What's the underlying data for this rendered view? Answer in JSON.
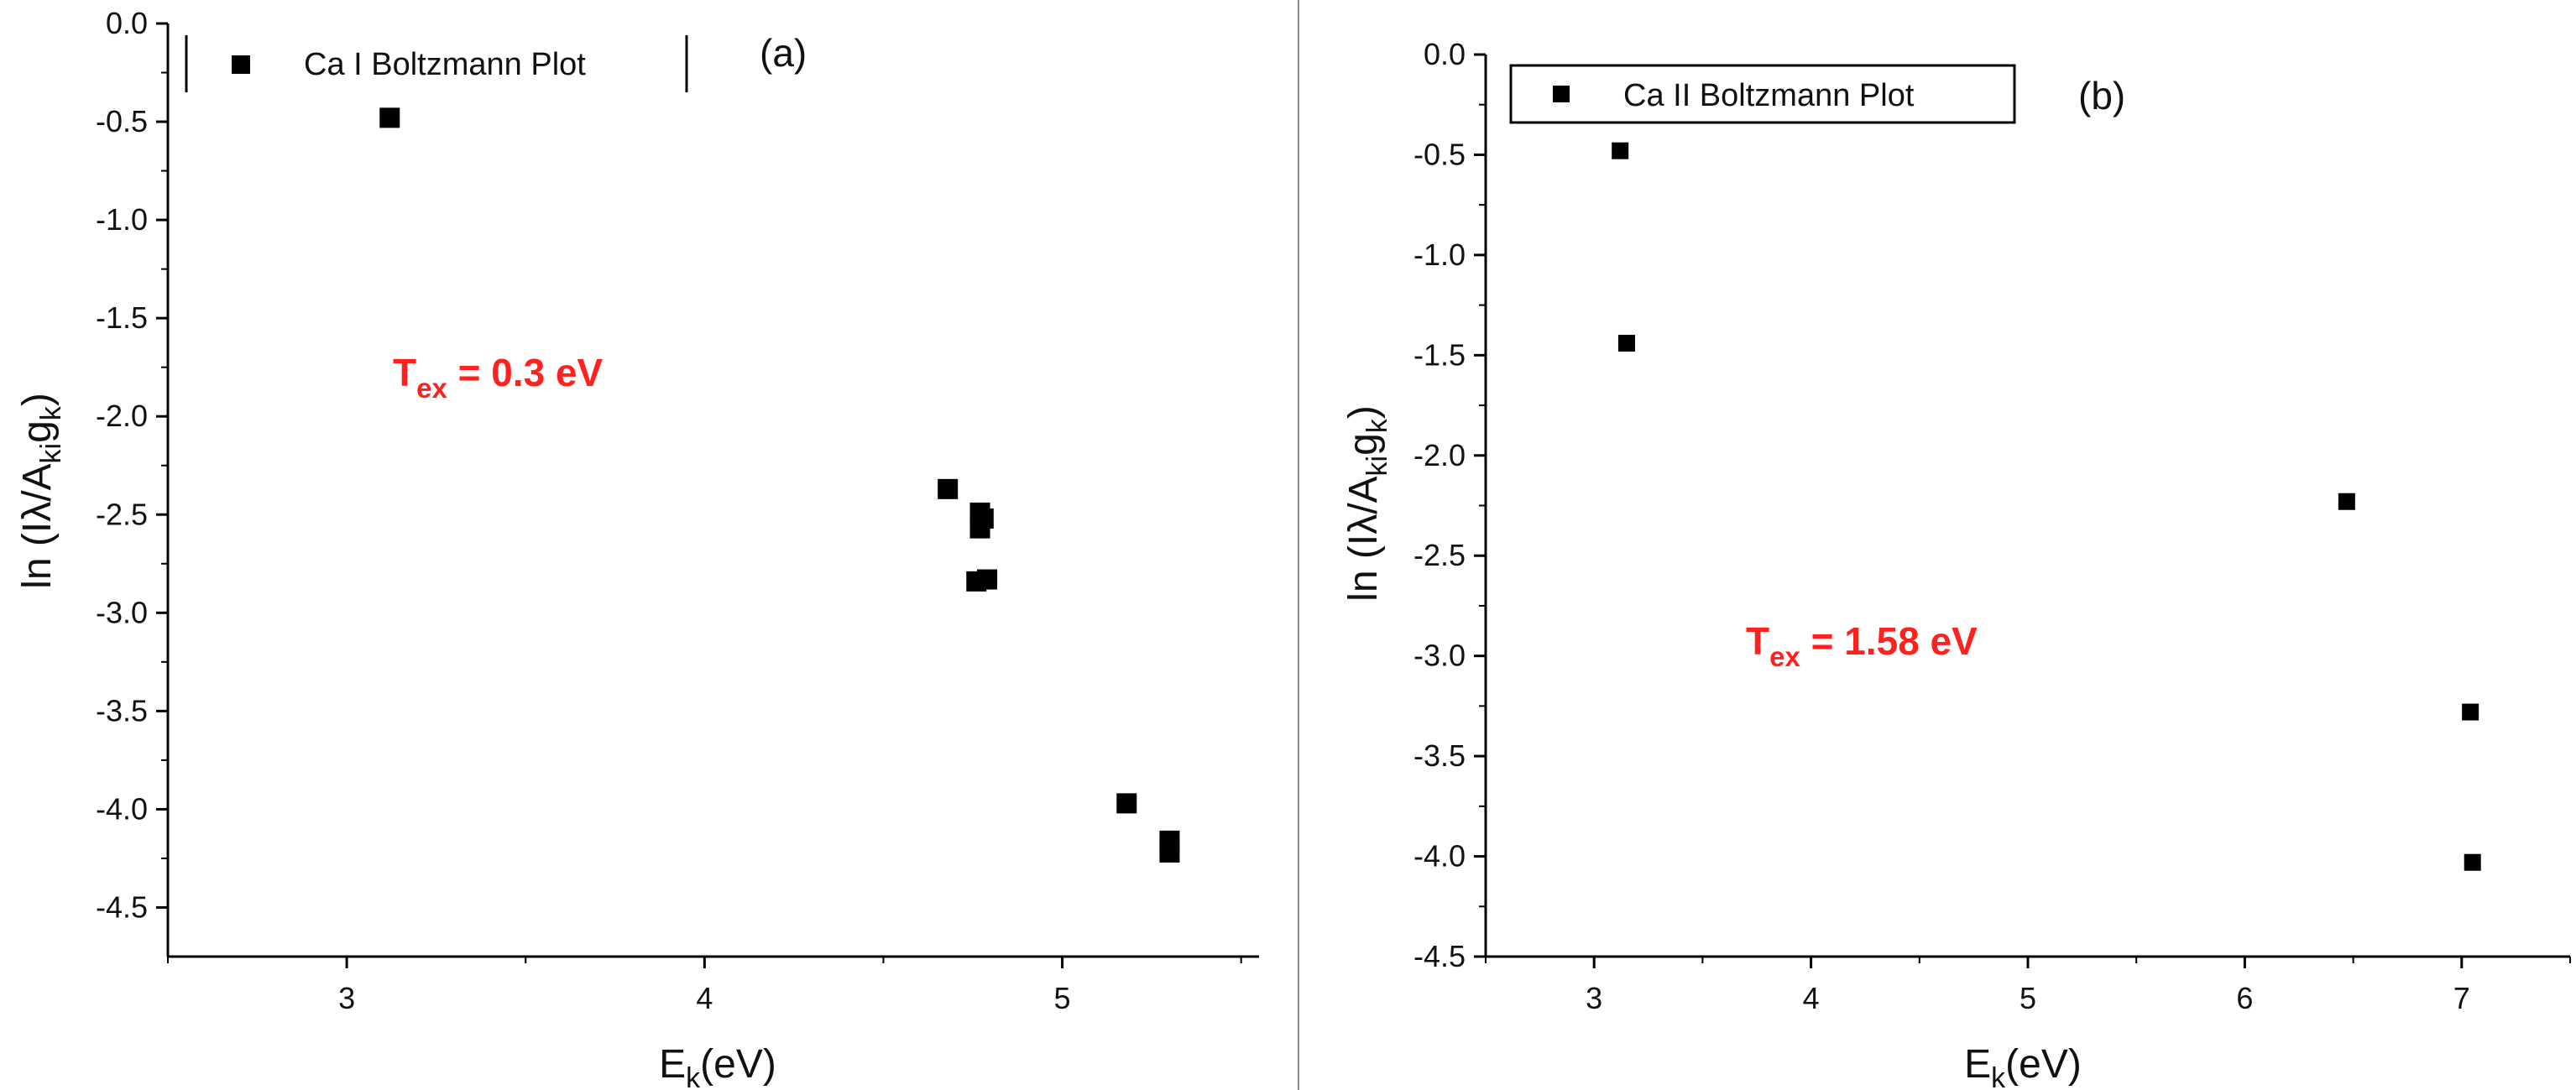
{
  "chart_data": [
    {
      "type": "scatter",
      "panel_label": "(a)",
      "legend": "Ca I Boltzmann Plot",
      "annotation": {
        "main": "T",
        "sub": "ex",
        "rest": " = 0.3 eV",
        "color": "#ff2020"
      },
      "xlabel": {
        "main": "E",
        "sub": "k",
        "rest": "(eV)"
      },
      "ylabel": {
        "prefix": "ln (Iλ/A",
        "sub1": "ki",
        "mid": "g",
        "sub2": "k",
        "suffix": ")"
      },
      "xlim": [
        2.5,
        5.55
      ],
      "ylim": [
        -4.75,
        0.0
      ],
      "xticks": [
        3,
        4,
        5
      ],
      "xtick_labels": [
        "3",
        "4",
        "5"
      ],
      "yticks": [
        0.0,
        -0.5,
        -1.0,
        -1.5,
        -2.0,
        -2.5,
        -3.0,
        -3.5,
        -4.0,
        -4.5
      ],
      "ytick_labels": [
        "0.0",
        "-0.5",
        "-1.0",
        "-1.5",
        "-2.0",
        "-2.5",
        "-3.0",
        "-3.5",
        "-4.0",
        "-4.5"
      ],
      "points": [
        {
          "x": 3.12,
          "y": -0.48
        },
        {
          "x": 4.68,
          "y": -2.37
        },
        {
          "x": 4.77,
          "y": -2.49
        },
        {
          "x": 4.78,
          "y": -2.52
        },
        {
          "x": 4.77,
          "y": -2.57
        },
        {
          "x": 4.76,
          "y": -2.84
        },
        {
          "x": 4.79,
          "y": -2.83
        },
        {
          "x": 5.18,
          "y": -3.97
        },
        {
          "x": 5.3,
          "y": -4.16
        },
        {
          "x": 5.3,
          "y": -4.22
        }
      ],
      "marker_color": "#000000"
    },
    {
      "type": "scatter",
      "panel_label": "(b)",
      "legend": "Ca II Boltzmann Plot",
      "annotation": {
        "main": "T",
        "sub": "ex",
        "rest": " = 1.58 eV",
        "color": "#ff2020"
      },
      "xlabel": {
        "main": "E",
        "sub": "k",
        "rest": "(eV)"
      },
      "ylabel": {
        "prefix": "ln (Iλ/A",
        "sub1": "ki",
        "mid": "g",
        "sub2": "k",
        "suffix": ")"
      },
      "xlim": [
        2.5,
        7.5
      ],
      "ylim": [
        -4.5,
        0.0
      ],
      "xticks": [
        3,
        4,
        5,
        6,
        7
      ],
      "xtick_labels": [
        "3",
        "4",
        "5",
        "6",
        "7"
      ],
      "yticks": [
        0.0,
        -0.5,
        -1.0,
        -1.5,
        -2.0,
        -2.5,
        -3.0,
        -3.5,
        -4.0,
        -4.5
      ],
      "ytick_labels": [
        "0.0",
        "-0.5",
        "-1.0",
        "-1.5",
        "-2.0",
        "-2.5",
        "-3.0",
        "-3.5",
        "-4.0",
        "-4.5"
      ],
      "points": [
        {
          "x": 3.12,
          "y": -0.48
        },
        {
          "x": 3.15,
          "y": -1.44
        },
        {
          "x": 6.47,
          "y": -2.23
        },
        {
          "x": 7.04,
          "y": -3.28
        },
        {
          "x": 7.05,
          "y": -4.03
        }
      ],
      "marker_color": "#000000"
    }
  ]
}
